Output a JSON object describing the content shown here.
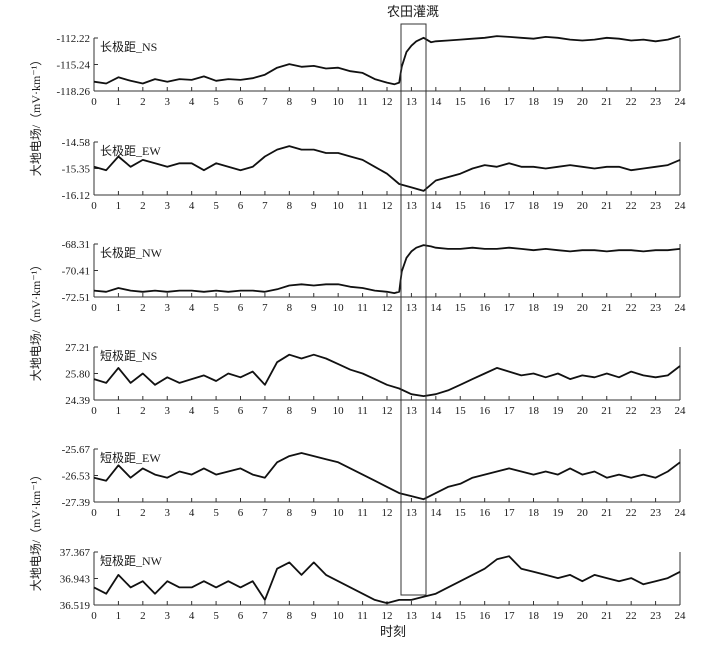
{
  "figure": {
    "annotation": "农田灌溉",
    "xlabel": "时刻",
    "ylabel_top": "大地电场/（mV·km⁻¹）",
    "ylabel_middle": "大地电场/（mV·km⁻¹）",
    "ylabel_bottom": "大地电场/（mV·km⁻¹）",
    "xticks": [
      "0",
      "1",
      "2",
      "3",
      "4",
      "5",
      "6",
      "7",
      "8",
      "9",
      "10",
      "11",
      "12",
      "13",
      "14",
      "15",
      "16",
      "17",
      "18",
      "19",
      "20",
      "21",
      "22",
      "23",
      "24"
    ]
  },
  "chart_data": [
    {
      "type": "line",
      "label": "长极距_NS",
      "yticks": [
        "-112.22",
        "-115.24",
        "-118.26"
      ],
      "ylim": [
        -118.26,
        -112.22
      ],
      "series": [
        {
          "x": [
            0,
            0.5,
            1,
            1.5,
            2,
            2.5,
            3,
            3.5,
            4,
            4.5,
            5,
            5.5,
            6,
            6.5,
            7,
            7.5,
            8,
            8.5,
            9,
            9.5,
            10,
            10.5,
            11,
            11.5,
            12,
            12.3,
            12.5,
            12.6,
            12.8,
            13,
            13.2,
            13.5,
            13.8,
            14,
            14.5,
            15,
            15.5,
            16,
            16.5,
            17,
            17.5,
            18,
            18.5,
            19,
            19.5,
            20,
            20.5,
            21,
            21.5,
            22,
            22.5,
            23,
            23.5,
            24
          ],
          "y": [
            -117.2,
            -117.4,
            -116.7,
            -117.1,
            -117.4,
            -116.9,
            -117.2,
            -116.9,
            -117.0,
            -116.6,
            -117.1,
            -116.9,
            -117.0,
            -116.8,
            -116.4,
            -115.6,
            -115.2,
            -115.5,
            -115.4,
            -115.7,
            -115.6,
            -116.0,
            -116.2,
            -116.9,
            -117.3,
            -117.5,
            -117.3,
            -115.5,
            -113.8,
            -113.1,
            -112.6,
            -112.2,
            -112.7,
            -112.6,
            -112.5,
            -112.4,
            -112.3,
            -112.2,
            -112.0,
            -112.1,
            -112.2,
            -112.3,
            -112.1,
            -112.2,
            -112.4,
            -112.5,
            -112.4,
            -112.2,
            -112.3,
            -112.5,
            -112.4,
            -112.6,
            -112.4,
            -112.0
          ]
        }
      ]
    },
    {
      "type": "line",
      "label": "长极距_EW",
      "yticks": [
        "-14.58",
        "-15.35",
        "-16.12"
      ],
      "ylim": [
        -16.12,
        -14.58
      ],
      "series": [
        {
          "x": [
            0,
            0.5,
            1,
            1.5,
            2,
            2.5,
            3,
            3.5,
            4,
            4.5,
            5,
            5.5,
            6,
            6.5,
            7,
            7.5,
            8,
            8.5,
            9,
            9.5,
            10,
            10.5,
            11,
            11.5,
            12,
            12.5,
            13,
            13.5,
            14,
            14.5,
            15,
            15.5,
            16,
            16.5,
            17,
            17.5,
            18,
            18.5,
            19,
            19.5,
            20,
            20.5,
            21,
            21.5,
            22,
            22.5,
            23,
            23.5,
            24
          ],
          "y": [
            -15.3,
            -15.4,
            -15.0,
            -15.3,
            -15.1,
            -15.2,
            -15.3,
            -15.2,
            -15.2,
            -15.4,
            -15.2,
            -15.3,
            -15.4,
            -15.3,
            -15.0,
            -14.8,
            -14.7,
            -14.8,
            -14.8,
            -14.9,
            -14.9,
            -15.0,
            -15.1,
            -15.3,
            -15.5,
            -15.8,
            -15.9,
            -16.0,
            -15.7,
            -15.6,
            -15.5,
            -15.35,
            -15.25,
            -15.3,
            -15.2,
            -15.3,
            -15.3,
            -15.35,
            -15.3,
            -15.25,
            -15.3,
            -15.35,
            -15.3,
            -15.3,
            -15.4,
            -15.35,
            -15.3,
            -15.25,
            -15.1
          ]
        }
      ]
    },
    {
      "type": "line",
      "label": "长极距_NW",
      "yticks": [
        "-68.31",
        "-70.41",
        "-72.51"
      ],
      "ylim": [
        -72.51,
        -68.31
      ],
      "series": [
        {
          "x": [
            0,
            0.5,
            1,
            1.5,
            2,
            2.5,
            3,
            3.5,
            4,
            4.5,
            5,
            5.5,
            6,
            6.5,
            7,
            7.5,
            8,
            8.5,
            9,
            9.5,
            10,
            10.5,
            11,
            11.5,
            12,
            12.3,
            12.5,
            12.6,
            12.8,
            13,
            13.2,
            13.5,
            13.8,
            14,
            14.5,
            15,
            15.5,
            16,
            16.5,
            17,
            17.5,
            18,
            18.5,
            19,
            19.5,
            20,
            20.5,
            21,
            21.5,
            22,
            22.5,
            23,
            23.5,
            24
          ],
          "y": [
            -72.0,
            -72.1,
            -71.8,
            -72.0,
            -72.1,
            -72.0,
            -72.1,
            -72.0,
            -72.0,
            -72.1,
            -72.0,
            -72.1,
            -72.0,
            -72.0,
            -72.1,
            -71.9,
            -71.6,
            -71.5,
            -71.6,
            -71.5,
            -71.5,
            -71.7,
            -71.8,
            -72.0,
            -72.1,
            -72.2,
            -72.1,
            -70.5,
            -69.4,
            -68.9,
            -68.6,
            -68.4,
            -68.5,
            -68.6,
            -68.7,
            -68.7,
            -68.6,
            -68.7,
            -68.7,
            -68.6,
            -68.7,
            -68.8,
            -68.7,
            -68.8,
            -68.9,
            -68.8,
            -68.8,
            -68.9,
            -68.8,
            -68.8,
            -68.9,
            -68.8,
            -68.8,
            -68.7
          ]
        }
      ]
    },
    {
      "type": "line",
      "label": "短极距_NS",
      "yticks": [
        "27.21",
        "25.80",
        "24.39"
      ],
      "ylim": [
        24.39,
        27.21
      ],
      "series": [
        {
          "x": [
            0,
            0.5,
            1,
            1.5,
            2,
            2.5,
            3,
            3.5,
            4,
            4.5,
            5,
            5.5,
            6,
            6.5,
            7,
            7.5,
            8,
            8.5,
            9,
            9.5,
            10,
            10.5,
            11,
            11.5,
            12,
            12.5,
            13,
            13.5,
            14,
            14.5,
            15,
            15.5,
            16,
            16.5,
            17,
            17.5,
            18,
            18.5,
            19,
            19.5,
            20,
            20.5,
            21,
            21.5,
            22,
            22.5,
            23,
            23.5,
            24
          ],
          "y": [
            25.5,
            25.3,
            26.1,
            25.3,
            25.8,
            25.2,
            25.6,
            25.3,
            25.5,
            25.7,
            25.4,
            25.8,
            25.6,
            25.9,
            25.2,
            26.4,
            26.8,
            26.6,
            26.8,
            26.6,
            26.3,
            26.0,
            25.8,
            25.5,
            25.2,
            25.0,
            24.7,
            24.6,
            24.7,
            24.9,
            25.2,
            25.5,
            25.8,
            26.1,
            25.9,
            25.7,
            25.8,
            25.6,
            25.8,
            25.5,
            25.7,
            25.6,
            25.8,
            25.6,
            25.9,
            25.7,
            25.6,
            25.7,
            26.2
          ]
        }
      ]
    },
    {
      "type": "line",
      "label": "短极距_EW",
      "yticks": [
        "-25.67",
        "-26.53",
        "-27.39"
      ],
      "ylim": [
        -27.39,
        -25.67
      ],
      "series": [
        {
          "x": [
            0,
            0.5,
            1,
            1.5,
            2,
            2.5,
            3,
            3.5,
            4,
            4.5,
            5,
            5.5,
            6,
            6.5,
            7,
            7.5,
            8,
            8.5,
            9,
            9.5,
            10,
            10.5,
            11,
            11.5,
            12,
            12.5,
            13,
            13.5,
            14,
            14.5,
            15,
            15.5,
            16,
            16.5,
            17,
            17.5,
            18,
            18.5,
            19,
            19.5,
            20,
            20.5,
            21,
            21.5,
            22,
            22.5,
            23,
            23.5,
            24
          ],
          "y": [
            -26.6,
            -26.7,
            -26.2,
            -26.6,
            -26.3,
            -26.5,
            -26.6,
            -26.4,
            -26.5,
            -26.3,
            -26.5,
            -26.4,
            -26.3,
            -26.5,
            -26.6,
            -26.1,
            -25.9,
            -25.8,
            -25.9,
            -26.0,
            -26.1,
            -26.3,
            -26.5,
            -26.7,
            -26.9,
            -27.1,
            -27.2,
            -27.3,
            -27.1,
            -26.9,
            -26.8,
            -26.6,
            -26.5,
            -26.4,
            -26.3,
            -26.4,
            -26.5,
            -26.4,
            -26.5,
            -26.3,
            -26.5,
            -26.4,
            -26.6,
            -26.5,
            -26.6,
            -26.5,
            -26.6,
            -26.4,
            -26.1
          ]
        }
      ]
    },
    {
      "type": "line",
      "label": "短极距_NW",
      "yticks": [
        "37.367",
        "36.943",
        "36.519"
      ],
      "ylim": [
        36.519,
        37.367
      ],
      "series": [
        {
          "x": [
            0,
            0.5,
            1,
            1.5,
            2,
            2.5,
            3,
            3.5,
            4,
            4.5,
            5,
            5.5,
            6,
            6.5,
            7,
            7.5,
            8,
            8.5,
            9,
            9.5,
            10,
            10.5,
            11,
            11.5,
            12,
            12.5,
            13,
            13.5,
            14,
            14.5,
            15,
            15.5,
            16,
            16.5,
            17,
            17.5,
            18,
            18.5,
            19,
            19.5,
            20,
            20.5,
            21,
            21.5,
            22,
            22.5,
            23,
            23.5,
            24
          ],
          "y": [
            36.8,
            36.7,
            37.0,
            36.8,
            36.9,
            36.7,
            36.9,
            36.8,
            36.8,
            36.9,
            36.8,
            36.9,
            36.8,
            36.9,
            36.6,
            37.1,
            37.2,
            37.0,
            37.2,
            37.0,
            36.9,
            36.8,
            36.7,
            36.6,
            36.55,
            36.6,
            36.6,
            36.65,
            36.7,
            36.8,
            36.9,
            37.0,
            37.1,
            37.25,
            37.3,
            37.1,
            37.05,
            37.0,
            36.95,
            37.0,
            36.9,
            37.0,
            36.95,
            36.9,
            36.95,
            36.85,
            36.9,
            36.95,
            37.05
          ]
        }
      ]
    }
  ]
}
